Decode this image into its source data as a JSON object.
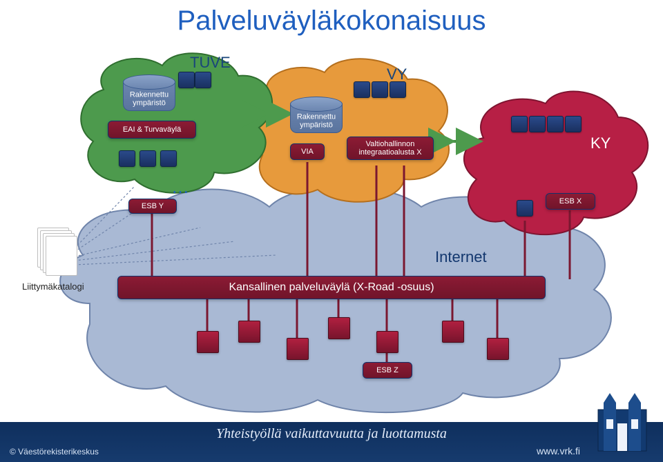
{
  "title": "Palveluväyläkokonaisuus",
  "clouds": {
    "tuve": {
      "label": "TUVE",
      "cyl_label": "Rakennettu\nympäristö",
      "eai_label": "EAI & Turvaväylä",
      "esb_y_label": "ESB Y",
      "ellipsis": "…",
      "fill": "#4d9a4d",
      "stroke": "#2f6e2f"
    },
    "vy": {
      "label": "VY",
      "cyl_label": "Rakennettu\nympäristö",
      "via_label": "VIA",
      "valtio_label": "Valtiohallinnon\nintegraatioalusta X",
      "fill": "#e79a3c",
      "stroke": "#b56f1d"
    },
    "ky": {
      "label": "KY",
      "esb_x_label": "ESB X",
      "fill": "#b71f45",
      "stroke": "#7e1430"
    },
    "internet": {
      "label": "Internet",
      "bus_label": "Kansallinen palveluväylä (X-Road -osuus)",
      "esb_z_label": "ESB Z",
      "fill": "#a9b9d4",
      "stroke": "#6f84aa"
    }
  },
  "liittyma": "Liittymäkatalogi",
  "footer": {
    "slogan": "Yhteistyöllä vaikuttavuutta ja luottamusta",
    "copyright": "© Väestörekisterikeskus",
    "url": "www.vrk.fi"
  },
  "colors": {
    "title": "#1f5fbf",
    "box_red": "#7e1a32",
    "box_border": "#12306a",
    "minibox": "#1f3c78",
    "redcube": "#9a1c38",
    "footer_bg": "#123560"
  }
}
